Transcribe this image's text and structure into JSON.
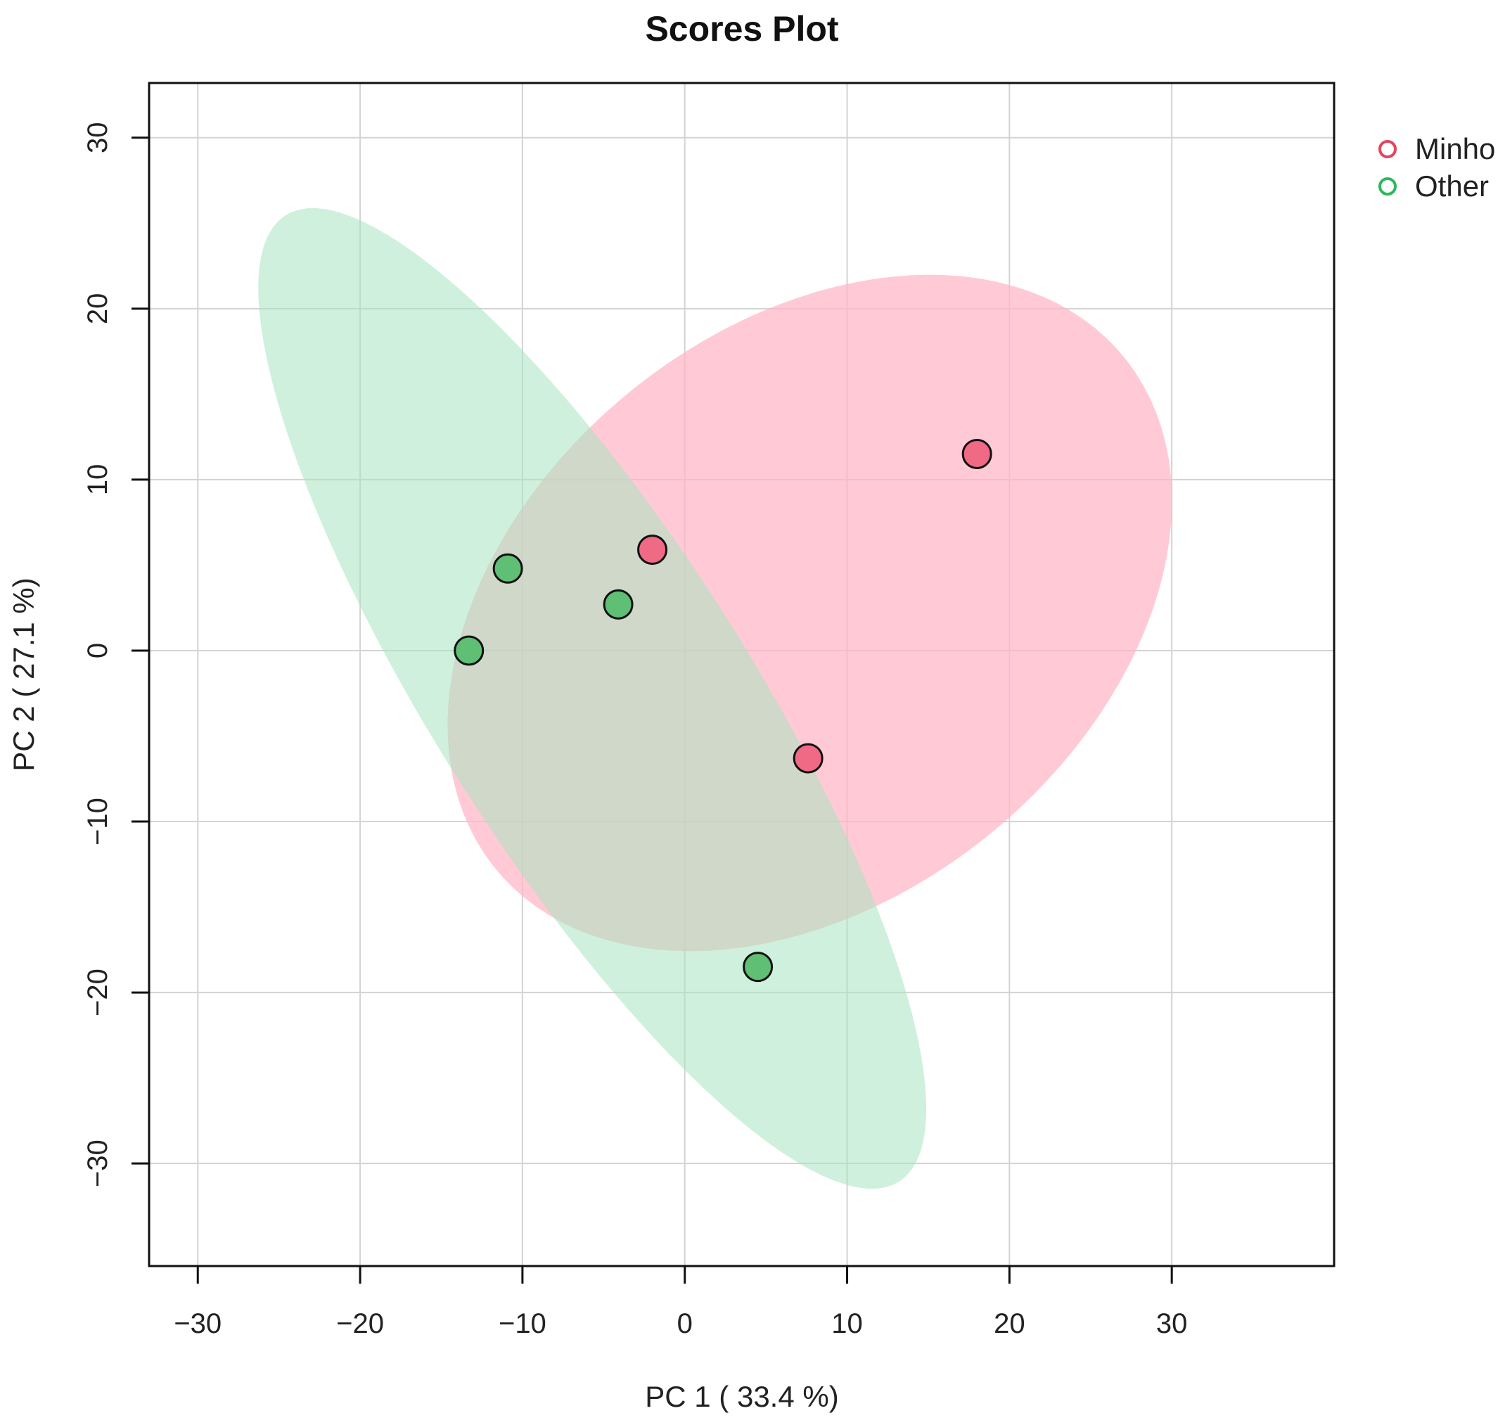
{
  "chart_data": {
    "type": "scatter",
    "title": "Scores Plot",
    "xlabel": "PC 1 ( 33.4 %)",
    "ylabel": "PC 2 ( 27.1 %)",
    "xlim": [
      -33,
      40
    ],
    "ylim": [
      -36,
      33.2
    ],
    "x_ticks": [
      -30,
      -20,
      -10,
      0,
      10,
      20,
      30
    ],
    "y_ticks": [
      -30,
      -20,
      -10,
      0,
      10,
      20,
      30
    ],
    "x_tick_labels": [
      "−30",
      "−20",
      "−10",
      "0",
      "10",
      "20",
      "30"
    ],
    "y_tick_labels": [
      "−30",
      "−20",
      "−10",
      "0",
      "10",
      "20",
      "30"
    ],
    "grid": true,
    "legend_position": "right",
    "series": [
      {
        "name": "Minho",
        "color": "#f06a85",
        "ellipse_color": "#ffb6c6",
        "points": [
          {
            "x": 18,
            "y": 11.5
          },
          {
            "x": -2,
            "y": 5.9
          },
          {
            "x": 7.6,
            "y": -6.3
          }
        ],
        "ellipse": {
          "cx": 7.7,
          "cy": 2.2,
          "rx": 24.5,
          "ry": 17.0,
          "angle_deg": 35
        }
      },
      {
        "name": "Other",
        "color": "#5fbf74",
        "ellipse_color": "#a8e4c0",
        "points": [
          {
            "x": -10.9,
            "y": 4.8
          },
          {
            "x": -4.1,
            "y": 2.7
          },
          {
            "x": -13.3,
            "y": 0
          },
          {
            "x": 4.5,
            "y": -18.5
          }
        ],
        "ellipse": {
          "cx": -5.7,
          "cy": -2.8,
          "rx": 34.0,
          "ry": 9.5,
          "angle_deg": -56
        }
      }
    ]
  }
}
